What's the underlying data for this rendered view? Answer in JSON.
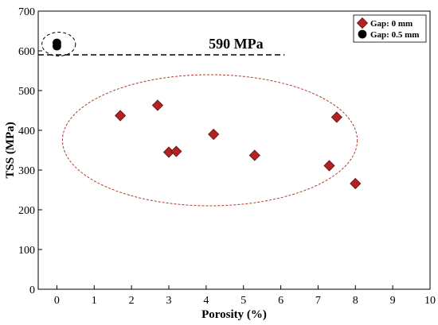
{
  "chart_data": {
    "type": "scatter",
    "xlabel": "Porosity (%)",
    "ylabel": "TSS (MPa)",
    "xlim": [
      -0.5,
      10
    ],
    "ylim": [
      0,
      700
    ],
    "x_ticks": [
      0,
      1,
      2,
      3,
      4,
      5,
      6,
      7,
      8,
      9,
      10
    ],
    "y_ticks": [
      0,
      100,
      200,
      300,
      400,
      500,
      600,
      700
    ],
    "grid": false,
    "legend_position": "top-right",
    "series": [
      {
        "name": "Gap: 0 mm",
        "marker": "diamond",
        "color": "#b22222",
        "points": [
          {
            "x": 1.7,
            "y": 437
          },
          {
            "x": 2.7,
            "y": 463
          },
          {
            "x": 3.0,
            "y": 345
          },
          {
            "x": 3.2,
            "y": 347
          },
          {
            "x": 4.2,
            "y": 390
          },
          {
            "x": 5.3,
            "y": 337
          },
          {
            "x": 7.3,
            "y": 311
          },
          {
            "x": 7.5,
            "y": 433
          },
          {
            "x": 8.0,
            "y": 266
          }
        ]
      },
      {
        "name": "Gap: 0.5 mm",
        "marker": "circle",
        "color": "#000000",
        "points": [
          {
            "x": 0.0,
            "y": 620
          },
          {
            "x": 0.0,
            "y": 612
          }
        ]
      }
    ],
    "reference_line": {
      "y": 590,
      "label": "590 MPa",
      "x_start": -0.5,
      "x_end": 6.1
    },
    "annotations": [
      {
        "shape": "ellipse",
        "color": "#b03a2e",
        "cx": 4.1,
        "cy": 375,
        "rx": 3.95,
        "ry": 165
      },
      {
        "shape": "ellipse",
        "color": "#000000",
        "cx": 0.05,
        "cy": 617,
        "rx": 0.45,
        "ry": 30
      }
    ]
  }
}
